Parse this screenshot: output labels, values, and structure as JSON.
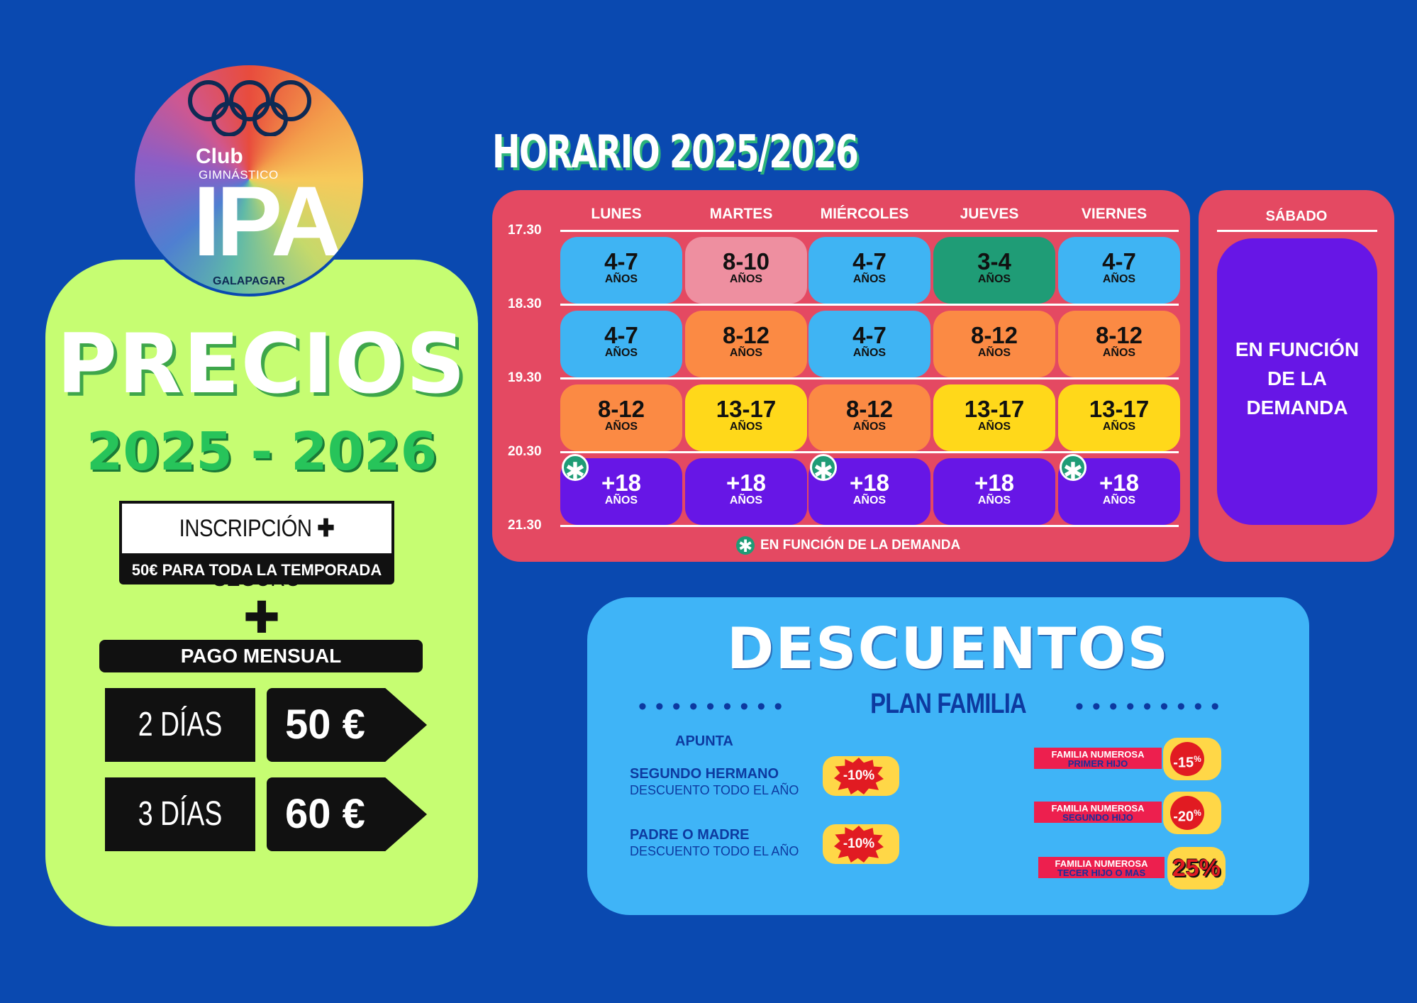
{
  "logo": {
    "club": "Club",
    "gimnastico": "GIMNÁSTICO",
    "ipa": "IPA",
    "galapagar": "GALAPAGAR",
    "icon": "olympic-rings-icon"
  },
  "precios": {
    "title": "PRECIOS",
    "years": "2025 - 2026",
    "inscripcion": "INSCRIPCIÓN",
    "plus": "✚",
    "seguro": "SEGURO",
    "inscripcion_sub": "50€ PARA TODA LA TEMPORADA",
    "big_plus": "✚",
    "pago_mensual": "PAGO MENSUAL",
    "planes": [
      {
        "dias": "2 DÍAS",
        "precio": "50 €"
      },
      {
        "dias": "3 DÍAS",
        "precio": "60 €"
      }
    ]
  },
  "horario": {
    "title": "HORARIO 2025/2026",
    "days": [
      "LUNES",
      "MARTES",
      "MIÉRCOLES",
      "JUEVES",
      "VIERNES"
    ],
    "times": [
      "17.30",
      "18.30",
      "19.30",
      "20.30",
      "21.30"
    ],
    "anos_label": "AÑOS",
    "star_symbol": "✱",
    "rows": [
      [
        {
          "age": "4-7",
          "color": "#3fb4f3"
        },
        {
          "age": "8-10",
          "color": "#ee8fa0"
        },
        {
          "age": "4-7",
          "color": "#3fb4f3"
        },
        {
          "age": "3-4",
          "color": "#1f9c76"
        },
        {
          "age": "4-7",
          "color": "#3fb4f3"
        }
      ],
      [
        {
          "age": "4-7",
          "color": "#3fb4f3"
        },
        {
          "age": "8-12",
          "color": "#fb8a44"
        },
        {
          "age": "4-7",
          "color": "#3fb4f3"
        },
        {
          "age": "8-12",
          "color": "#fb8a44"
        },
        {
          "age": "8-12",
          "color": "#fb8a44"
        }
      ],
      [
        {
          "age": "8-12",
          "color": "#fb8a44"
        },
        {
          "age": "13-17",
          "color": "#ffd81a"
        },
        {
          "age": "8-12",
          "color": "#fb8a44"
        },
        {
          "age": "13-17",
          "color": "#ffd81a"
        },
        {
          "age": "13-17",
          "color": "#ffd81a"
        }
      ],
      [
        {
          "age": "+18",
          "color": "#6716e6",
          "star": true
        },
        {
          "age": "+18",
          "color": "#6716e6"
        },
        {
          "age": "+18",
          "color": "#6716e6",
          "star": true
        },
        {
          "age": "+18",
          "color": "#6716e6"
        },
        {
          "age": "+18",
          "color": "#6716e6",
          "star": true
        }
      ]
    ],
    "note": "EN FUNCIÓN DE LA DEMANDA",
    "sabado": {
      "title": "SÁBADO",
      "text_lines": [
        "EN FUNCIÓN",
        "DE LA",
        "DEMANDA"
      ]
    }
  },
  "descuentos": {
    "title": "DESCUENTOS",
    "plan": "PLAN FAMILIA",
    "dots": "•••••••••",
    "apunta": "APUNTA",
    "items": [
      {
        "title": "SEGUNDO HERMANO",
        "sub": "DESCUENTO TODO EL AÑO",
        "badge": "-10%"
      },
      {
        "title": "PADRE O MADRE",
        "sub": "DESCUENTO TODO EL AÑO",
        "badge": "-10%"
      }
    ],
    "familia": [
      {
        "l1": "FAMILIA NUMEROSA",
        "l2": "PRIMER HIJO",
        "badge": "-15",
        "pct": "%"
      },
      {
        "l1": "FAMILIA NUMEROSA",
        "l2": "SEGUNDO HIJO",
        "badge": "-20",
        "pct": "%"
      },
      {
        "l1": "FAMILIA NUMEROSA",
        "l2": "TECER HIJO O MAS",
        "badge": "25%",
        "pct": ""
      }
    ]
  },
  "colors": {
    "background": "#0a49b0",
    "precios_panel": "#c6fd72",
    "schedule_panel": "#e44962",
    "descuentos_panel": "#3fb4f7"
  }
}
